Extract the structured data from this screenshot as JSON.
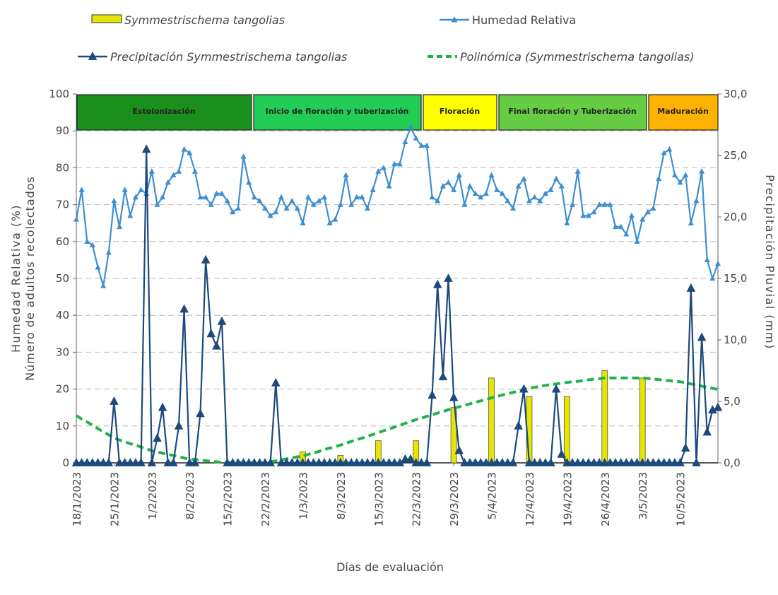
{
  "chart_data": {
    "type": "combo",
    "xlabel": "Días de evaluación",
    "ylabel": [
      "Humedad Relativa (%)",
      "Número de adultos recolectados"
    ],
    "y2label": "Precipitación Pluvial (mm)",
    "ylim": [
      0,
      100
    ],
    "yticks": [
      0,
      10,
      20,
      30,
      40,
      50,
      60,
      70,
      80,
      90,
      100
    ],
    "y2lim": [
      0,
      30
    ],
    "y2ticks": [
      {
        "value": 0,
        "label": "0,0"
      },
      {
        "value": 5,
        "label": "5,0"
      },
      {
        "value": 10,
        "label": "10,0"
      },
      {
        "value": 15,
        "label": "15,0"
      },
      {
        "value": 20,
        "label": "20,0"
      },
      {
        "value": 25,
        "label": "25,0"
      },
      {
        "value": 30,
        "label": "30,0"
      }
    ],
    "grid": true,
    "phases": [
      {
        "label": "Estolonización",
        "color": "#1b8f1b"
      },
      {
        "label": "Inicio de floración y tuberización",
        "color": "#22cc55"
      },
      {
        "label": "Floración",
        "color": "#ffff00"
      },
      {
        "label": "Final floración y Tuberización",
        "color": "#66cc44"
      },
      {
        "label": "Maduración",
        "color": "#ffb300"
      }
    ],
    "categories": [
      "18/1/2023",
      null,
      null,
      null,
      null,
      null,
      null,
      "25/1/2023",
      null,
      null,
      null,
      null,
      null,
      null,
      "1/2/2023",
      null,
      null,
      null,
      null,
      null,
      null,
      "8/2/2023",
      null,
      null,
      null,
      null,
      null,
      null,
      "15/2/2023",
      null,
      null,
      null,
      null,
      null,
      null,
      "22/2/2023",
      null,
      null,
      null,
      null,
      null,
      null,
      "1/3/2023",
      null,
      null,
      null,
      null,
      null,
      null,
      "8/3/2023",
      null,
      null,
      null,
      null,
      null,
      null,
      "15/3/2023",
      null,
      null,
      null,
      null,
      null,
      null,
      "22/3/2023",
      null,
      null,
      null,
      null,
      null,
      null,
      "29/3/2023",
      null,
      null,
      null,
      null,
      null,
      null,
      "5/4/2023",
      null,
      null,
      null,
      null,
      null,
      null,
      "12/4/2023",
      null,
      null,
      null,
      null,
      null,
      null,
      "19/4/2023",
      null,
      null,
      null,
      null,
      null,
      null,
      "26/4/2023",
      null,
      null,
      null,
      null,
      null,
      null,
      "3/5/2023",
      null,
      null,
      null,
      null,
      null,
      null,
      "10/5/2023",
      null,
      null,
      null,
      null,
      null,
      null,
      null
    ],
    "series": [
      {
        "name": "Symmestrischema tangolias",
        "type": "bar",
        "color": "#e6e600",
        "values": [
          0,
          null,
          null,
          null,
          null,
          null,
          null,
          0,
          null,
          null,
          null,
          null,
          null,
          null,
          0,
          null,
          null,
          null,
          null,
          null,
          null,
          0,
          null,
          null,
          null,
          null,
          null,
          null,
          0,
          null,
          null,
          null,
          null,
          null,
          null,
          0,
          null,
          null,
          null,
          null,
          null,
          null,
          3,
          null,
          null,
          null,
          null,
          null,
          null,
          2,
          null,
          null,
          null,
          null,
          null,
          null,
          6,
          null,
          null,
          null,
          null,
          null,
          null,
          6,
          null,
          null,
          null,
          null,
          null,
          null,
          15,
          null,
          null,
          null,
          null,
          null,
          null,
          23,
          null,
          null,
          null,
          null,
          null,
          null,
          18,
          null,
          null,
          null,
          null,
          null,
          null,
          18,
          null,
          null,
          null,
          null,
          null,
          null,
          25,
          null,
          null,
          null,
          null,
          null,
          null,
          23,
          null,
          null,
          null,
          null,
          null,
          null,
          0,
          null,
          null,
          null,
          null,
          null,
          null,
          null
        ]
      },
      {
        "name": "Humedad Relativa",
        "type": "line",
        "color": "#3d8fd1",
        "values": [
          66,
          74,
          60,
          59,
          53,
          48,
          57,
          71,
          64,
          74,
          67,
          72,
          74,
          73,
          79,
          70,
          72,
          76,
          78,
          79,
          85,
          84,
          79,
          72,
          72,
          70,
          73,
          73,
          71,
          68,
          69,
          83,
          76,
          72,
          71,
          69,
          67,
          68,
          72,
          69,
          71,
          69,
          65,
          72,
          70,
          71,
          72,
          65,
          66,
          70,
          78,
          70,
          72,
          72,
          69,
          74,
          79,
          80,
          75,
          81,
          81,
          87,
          91,
          88,
          86,
          86,
          72,
          71,
          75,
          76,
          74,
          78,
          70,
          75,
          73,
          72,
          73,
          78,
          74,
          73,
          71,
          69,
          75,
          77,
          71,
          72,
          71,
          73,
          74,
          77,
          75,
          65,
          70,
          79,
          67,
          67,
          68,
          70,
          70,
          70,
          64,
          64,
          62,
          67,
          60,
          66,
          68,
          69,
          77,
          84,
          85,
          78,
          76,
          78,
          65,
          71,
          79,
          55,
          50,
          54
        ]
      },
      {
        "name": "Precipitación Symmestrischema tangolias",
        "type": "line",
        "axis": "y2",
        "color": "#1c4a7c",
        "values": [
          0,
          0,
          0,
          0,
          0,
          0,
          0,
          5,
          0,
          0,
          0,
          0,
          0,
          25.5,
          0,
          2,
          4.5,
          0,
          0,
          3,
          12.5,
          0,
          0,
          4,
          16.5,
          10.5,
          9.5,
          11.5,
          0,
          0,
          0,
          0,
          0,
          0,
          0,
          0,
          0,
          6.5,
          0,
          0,
          0,
          0,
          0,
          0,
          0,
          0,
          0,
          0,
          0,
          0,
          0,
          0,
          0,
          0,
          0,
          0,
          0,
          0,
          0,
          0,
          0,
          0.3,
          0.3,
          0,
          0,
          0,
          5.5,
          14.5,
          7,
          15,
          5.3,
          1,
          0,
          0,
          0,
          0,
          0,
          0,
          0,
          0,
          0,
          0,
          3,
          6,
          0,
          0,
          0,
          0,
          0,
          6,
          0.7,
          0,
          0,
          0,
          0,
          0,
          0,
          0,
          0,
          0,
          0,
          0,
          0,
          0,
          0,
          0,
          0,
          0,
          0,
          0,
          0,
          0,
          0,
          1.2,
          14.2,
          0,
          10.2,
          2.5,
          4.3,
          4.5
        ]
      },
      {
        "name": "Polinómica (Symmestrischema tangolias)",
        "type": "trend",
        "color": "#22b24c",
        "values": [
          12.8,
          11.9,
          11.1,
          10.2,
          9.3,
          8.4,
          7.6,
          6.7,
          6.2,
          5.7,
          5.2,
          4.8,
          4.3,
          3.8,
          3.3,
          3.0,
          2.6,
          2.3,
          2.0,
          1.7,
          1.3,
          1.0,
          0.9,
          0.7,
          0.6,
          0.4,
          0.3,
          0.1,
          0,
          0,
          0,
          0,
          0,
          0,
          0,
          0,
          0.3,
          0.5,
          0.8,
          1.1,
          1.4,
          1.6,
          1.9,
          2.3,
          2.7,
          3.1,
          3.6,
          4.0,
          4.4,
          4.8,
          5.3,
          5.8,
          6.3,
          6.7,
          7.2,
          7.7,
          8.2,
          8.7,
          9.2,
          9.7,
          10.2,
          10.7,
          11.2,
          11.7,
          12.1,
          12.6,
          13.0,
          13.5,
          13.9,
          14.4,
          14.8,
          15.2,
          15.6,
          16.0,
          16.4,
          16.8,
          17.2,
          17.6,
          18.0,
          18.4,
          18.8,
          19.1,
          19.5,
          19.9,
          20.3,
          20.5,
          20.7,
          21.0,
          21.2,
          21.4,
          21.6,
          21.8,
          22.0,
          22.1,
          22.3,
          22.5,
          22.7,
          22.8,
          23,
          23,
          23,
          23,
          23,
          23,
          23,
          23,
          22.9,
          22.7,
          22.6,
          22.4,
          22.3,
          22.1,
          22,
          21.7,
          21.4,
          21.1,
          20.8,
          20.5,
          20.2,
          19.9
        ]
      }
    ]
  }
}
